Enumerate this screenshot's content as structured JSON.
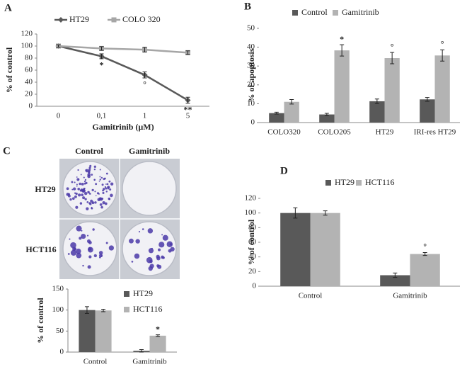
{
  "panels": [
    "A",
    "B",
    "C",
    "D"
  ],
  "colony_panel": {
    "columns": [
      "Control",
      "Gamitrinib"
    ],
    "rows": [
      "HT29",
      "HCT116"
    ]
  },
  "chart_data": [
    {
      "type": "line",
      "categories": [
        "0",
        "0,1",
        "1",
        "5"
      ],
      "xlabel": "Gamitrinib (µM)",
      "ylabel": "% of control",
      "ylim": [
        0,
        120
      ],
      "yticks": [
        0,
        20,
        40,
        60,
        80,
        100,
        120
      ],
      "series": [
        {
          "name": "HT29",
          "color": "#595959",
          "marker": "diamond",
          "values": [
            100,
            83,
            52,
            10
          ],
          "errors": [
            2,
            4,
            5,
            5
          ]
        },
        {
          "name": "COLO 320",
          "color": "#a6a6a6",
          "marker": "square",
          "values": [
            100,
            96,
            94,
            89
          ],
          "errors": [
            2,
            3,
            4,
            3
          ]
        }
      ],
      "annotations": [
        {
          "series": 0,
          "index": 1,
          "text": "*"
        },
        {
          "series": 0,
          "index": 2,
          "text": "°"
        },
        {
          "series": 0,
          "index": 3,
          "text": "**"
        }
      ]
    },
    {
      "type": "bar",
      "categories": [
        "COLO320",
        "COLO205",
        "HT29",
        "IRI-res HT29"
      ],
      "ylabel": "% of apoptosis",
      "ylim": [
        0,
        50
      ],
      "yticks": [
        0,
        10,
        20,
        30,
        40,
        50
      ],
      "series": [
        {
          "name": "Control",
          "color": "#595959",
          "values": [
            5,
            4.3,
            11.3,
            12.3
          ],
          "errors": [
            0.5,
            0.6,
            1.2,
            1
          ]
        },
        {
          "name": "Gamitrinib",
          "color": "#b3b3b3",
          "values": [
            11,
            38.3,
            34.2,
            35.6
          ],
          "errors": [
            1.2,
            3,
            3,
            3
          ]
        }
      ],
      "annotations": [
        {
          "series": 1,
          "index": 1,
          "text": "*"
        },
        {
          "series": 1,
          "index": 2,
          "text": "°"
        },
        {
          "series": 1,
          "index": 3,
          "text": "°"
        }
      ]
    },
    {
      "type": "bar",
      "categories": [
        "Control",
        "Gamitrinib"
      ],
      "ylabel": "% of control",
      "ylim": [
        0,
        150
      ],
      "yticks": [
        0,
        50,
        100,
        150
      ],
      "series": [
        {
          "name": "HT29",
          "color": "#595959",
          "values": [
            100,
            3
          ],
          "errors": [
            8,
            3
          ]
        },
        {
          "name": "HCT116",
          "color": "#b3b3b3",
          "values": [
            99,
            39
          ],
          "errors": [
            3,
            2
          ]
        }
      ],
      "annotations": [
        {
          "series": 1,
          "index": 1,
          "text": "*"
        }
      ]
    },
    {
      "type": "bar",
      "categories": [
        "Control",
        "Gamitrinib"
      ],
      "ylabel": "% of control",
      "ylim": [
        0,
        120
      ],
      "yticks": [
        0,
        20,
        40,
        60,
        80,
        100,
        120
      ],
      "series": [
        {
          "name": "HT29",
          "color": "#595959",
          "values": [
            100,
            15
          ],
          "errors": [
            7,
            3
          ]
        },
        {
          "name": "HCT116",
          "color": "#b3b3b3",
          "values": [
            100,
            44
          ],
          "errors": [
            3,
            2
          ]
        }
      ],
      "annotations": [
        {
          "series": 1,
          "index": 1,
          "text": "°"
        }
      ]
    }
  ]
}
